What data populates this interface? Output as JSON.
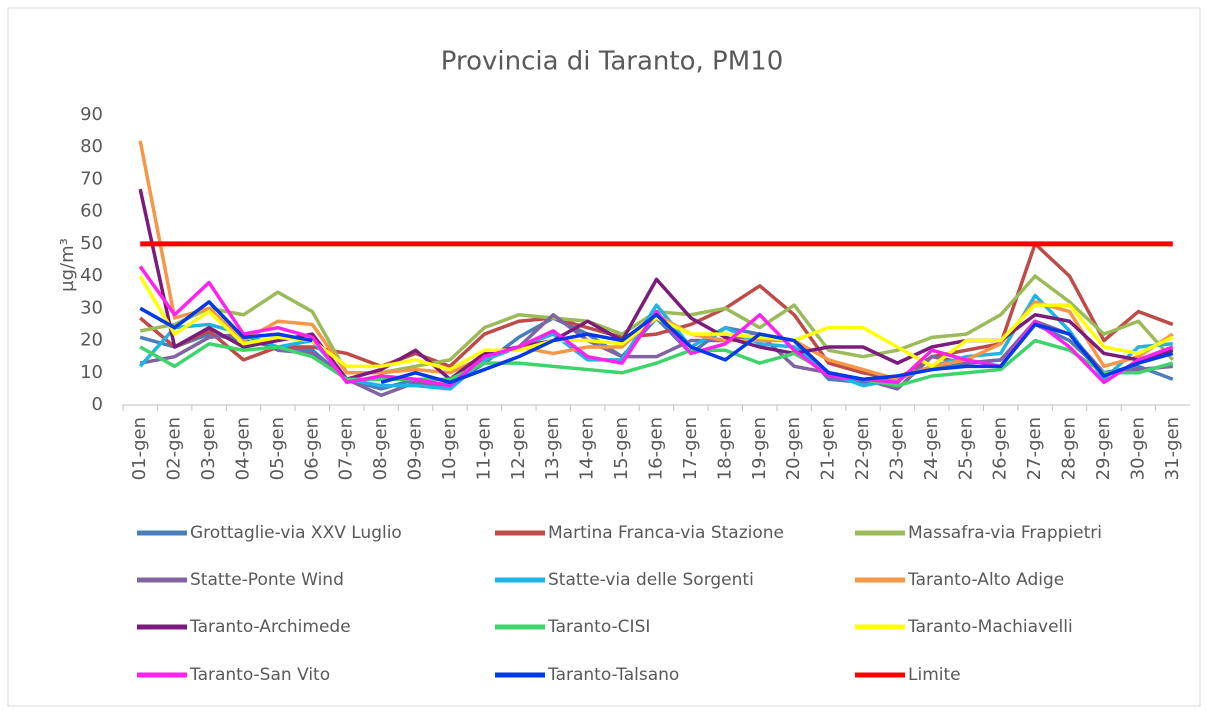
{
  "chart_data": {
    "type": "line",
    "title": "Provincia di Taranto, PM10",
    "y_label": "µg/m³",
    "categories": [
      "01-gen",
      "02-gen",
      "03-gen",
      "04-gen",
      "05-gen",
      "06-gen",
      "07-gen",
      "08-gen",
      "09-gen",
      "10-gen",
      "11-gen",
      "12-gen",
      "13-gen",
      "14-gen",
      "15-gen",
      "16-gen",
      "17-gen",
      "18-gen",
      "19-gen",
      "20-gen",
      "21-gen",
      "22-gen",
      "23-gen",
      "24-gen",
      "25-gen",
      "26-gen",
      "27-gen",
      "28-gen",
      "29-gen",
      "30-gen",
      "31-gen"
    ],
    "ylim": [
      0,
      90
    ],
    "yticks": [
      0,
      10,
      20,
      30,
      40,
      50,
      60,
      70,
      80,
      90
    ],
    "series": [
      {
        "name": "Grottaglie-via XXV Luglio",
        "color": "#4a7ebb",
        "values": [
          21,
          18,
          22,
          20,
          18,
          17,
          8,
          5,
          8,
          6,
          13,
          21,
          27,
          22,
          15,
          27,
          16,
          24,
          22,
          20,
          8,
          7,
          9,
          11,
          13,
          14,
          25,
          20,
          10,
          12,
          8
        ]
      },
      {
        "name": "Martina Franca-via Stazione",
        "color": "#be4b48",
        "values": [
          27,
          18,
          23,
          14,
          18,
          18,
          16,
          12,
          16,
          12,
          22,
          26,
          27,
          24,
          21,
          22,
          25,
          30,
          37,
          28,
          13,
          10,
          8,
          15,
          17,
          19,
          50,
          40,
          20,
          29,
          25
        ]
      },
      {
        "name": "Massafra-via Frappietri",
        "color": "#9bbb59",
        "values": [
          23,
          25,
          30,
          28,
          35,
          29,
          10,
          10,
          12,
          14,
          24,
          28,
          27,
          26,
          22,
          29,
          28,
          30,
          24,
          31,
          17,
          15,
          17,
          21,
          22,
          28,
          40,
          32,
          22,
          26,
          14
        ]
      },
      {
        "name": "Statte-Ponte Wind",
        "color": "#8064a2",
        "values": [
          13,
          15,
          21,
          22,
          17,
          16,
          8,
          3,
          7,
          5,
          14,
          18,
          28,
          20,
          15,
          15,
          20,
          20,
          22,
          12,
          10,
          8,
          5,
          15,
          13,
          14,
          26,
          22,
          10,
          11,
          12
        ]
      },
      {
        "name": "Statte-via delle Sorgenti",
        "color": "#1fb4e6",
        "values": [
          12,
          24,
          25,
          22,
          18,
          20,
          8,
          6,
          6,
          5,
          14,
          18,
          22,
          14,
          14,
          31,
          18,
          24,
          19,
          18,
          10,
          6,
          8,
          12,
          15,
          16,
          34,
          23,
          8,
          18,
          19
        ]
      },
      {
        "name": "Taranto-Alto Adige",
        "color": "#f79646",
        "values": [
          82,
          27,
          30,
          20,
          26,
          25,
          10,
          10,
          11,
          10,
          15,
          18,
          16,
          18,
          18,
          28,
          22,
          20,
          20,
          20,
          14,
          11,
          8,
          12,
          14,
          19,
          32,
          29,
          12,
          15,
          22
        ]
      },
      {
        "name": "Taranto-Archimede",
        "color": "#7b1c7c",
        "values": [
          67,
          18,
          24,
          18,
          20,
          22,
          8,
          11,
          17,
          8,
          16,
          18,
          20,
          26,
          20,
          39,
          27,
          21,
          18,
          16,
          18,
          18,
          13,
          18,
          20,
          20,
          28,
          26,
          16,
          14,
          17
        ]
      },
      {
        "name": "Taranto-CISI",
        "color": "#3dd56b",
        "values": [
          18,
          12,
          19,
          17,
          18,
          15,
          8,
          8,
          8,
          8,
          13,
          13,
          12,
          11,
          10,
          13,
          17,
          17,
          13,
          16,
          10,
          8,
          6,
          9,
          10,
          11,
          20,
          17,
          10,
          10,
          13
        ]
      },
      {
        "name": "Taranto-Machiavelli",
        "color": "#ffff00",
        "values": [
          40,
          22,
          29,
          19,
          21,
          20,
          12,
          12,
          14,
          11,
          17,
          17,
          20,
          20,
          19,
          27,
          22,
          22,
          21,
          20,
          24,
          24,
          18,
          12,
          20,
          20,
          31,
          31,
          18,
          16,
          21
        ]
      },
      {
        "name": "Taranto-San Vito",
        "color": "#ff22ee",
        "values": [
          43,
          28,
          38,
          22,
          24,
          21,
          7,
          9,
          8,
          6,
          15,
          18,
          23,
          15,
          13,
          29,
          16,
          19,
          28,
          17,
          9,
          8,
          7,
          17,
          14,
          12,
          26,
          18,
          7,
          14,
          18
        ]
      },
      {
        "name": "Taranto-Talsano",
        "color": "#0039e6",
        "values": [
          30,
          24,
          32,
          21,
          22,
          20,
          null,
          7,
          10,
          7,
          11,
          15,
          20,
          22,
          20,
          28,
          18,
          14,
          22,
          20,
          10,
          8,
          9,
          11,
          12,
          12,
          25,
          22,
          9,
          13,
          16
        ]
      },
      {
        "name": "Limite",
        "color": "#ff0000",
        "values": [
          50,
          50,
          50,
          50,
          50,
          50,
          50,
          50,
          50,
          50,
          50,
          50,
          50,
          50,
          50,
          50,
          50,
          50,
          50,
          50,
          50,
          50,
          50,
          50,
          50,
          50,
          50,
          50,
          50,
          50,
          50
        ]
      }
    ]
  }
}
